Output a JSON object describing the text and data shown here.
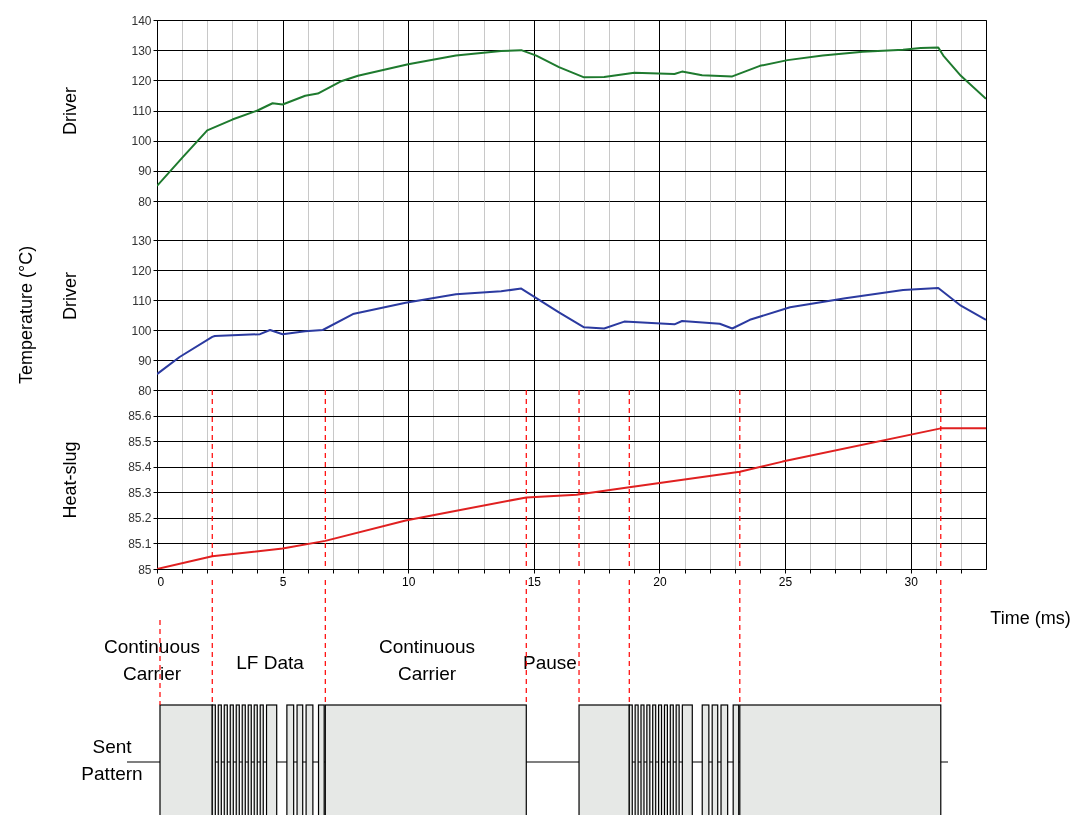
{
  "chart_data": [
    {
      "type": "line",
      "ylabel": "Driver",
      "x": [
        0,
        1,
        2,
        3,
        4,
        4.6,
        5,
        5.9,
        6.4,
        7.3,
        8,
        10,
        11.9,
        13.7,
        14.5,
        15.1,
        16,
        17,
        17.8,
        19,
        20.6,
        20.9,
        21.7,
        22.9,
        24,
        25.1,
        26.5,
        28.1,
        29.7,
        30.4,
        31.1,
        31.3,
        32,
        33
      ],
      "series": [
        {
          "color": "#1e7a2e",
          "values": [
            85,
            94.3,
            103.4,
            107,
            110,
            112.4,
            112,
            114.9,
            115.6,
            119.6,
            121.5,
            125.3,
            128.2,
            129.7,
            130,
            128.2,
            124.4,
            121,
            121.1,
            122.5,
            122.1,
            122.9,
            121.7,
            121.3,
            124.8,
            126.7,
            128.2,
            129.5,
            130.1,
            130.7,
            130.9,
            128.2,
            121.5,
            113.9
          ]
        }
      ],
      "xlim": [
        0,
        33
      ],
      "ylim": [
        80,
        140
      ],
      "yticks": [
        80,
        90,
        100,
        110,
        120,
        130,
        140
      ],
      "xticks": [
        0,
        {
          "value": 1,
          "label": null
        },
        {
          "value": 2,
          "label": null
        },
        {
          "value": 3,
          "label": null
        },
        {
          "value": 4,
          "label": null
        },
        5,
        {
          "value": 6,
          "label": null
        },
        {
          "value": 7,
          "label": null
        },
        {
          "value": 8,
          "label": null
        },
        {
          "value": 9,
          "label": null
        },
        10,
        {
          "value": 11,
          "label": null
        },
        {
          "value": 12,
          "label": null
        },
        {
          "value": 13,
          "label": null
        },
        {
          "value": 14,
          "label": null
        },
        15,
        {
          "value": 16,
          "label": null
        },
        {
          "value": 17,
          "label": null
        },
        {
          "value": 18,
          "label": null
        },
        {
          "value": 19,
          "label": null
        },
        20,
        {
          "value": 21,
          "label": null
        },
        {
          "value": 22,
          "label": null
        },
        {
          "value": 23,
          "label": null
        },
        {
          "value": 24,
          "label": null
        },
        25,
        {
          "value": 26,
          "label": null
        },
        {
          "value": 27,
          "label": null
        },
        {
          "value": 28,
          "label": null
        },
        {
          "value": 29,
          "label": null
        },
        30,
        {
          "value": 31,
          "label": null
        },
        {
          "value": 32,
          "label": null
        }
      ],
      "grid": true,
      "tick_labels": "y"
    },
    {
      "type": "line",
      "ylabel": "Driver",
      "annotations": [
        "Temperature (°C)"
      ],
      "x": [
        0,
        0.9,
        2.2,
        2.3,
        4.1,
        4.5,
        5,
        5.9,
        6.6,
        7.8,
        9.9,
        11.9,
        13.7,
        14.5,
        15.1,
        16,
        17,
        17.8,
        18.6,
        20.6,
        20.9,
        22.4,
        22.9,
        23.6,
        25.2,
        27.4,
        29.7,
        31.1,
        32,
        33
      ],
      "series": [
        {
          "color": "#2b3aa0",
          "values": [
            85.3,
            91,
            97.7,
            98,
            98.6,
            100,
            98.6,
            99.6,
            100,
            105.3,
            109.1,
            111.9,
            112.9,
            113.8,
            110.6,
            105.9,
            100.9,
            100.5,
            102.8,
            101.9,
            103,
            102.1,
            100.5,
            103.4,
            107.6,
            110.6,
            113.3,
            114,
            108.1,
            103.4
          ]
        }
      ],
      "xlim": [
        0,
        33
      ],
      "ylim": [
        80,
        143
      ],
      "yticks": [
        80,
        90,
        100,
        110,
        120,
        130
      ],
      "xticks": [
        0,
        {
          "value": 1,
          "label": null
        },
        {
          "value": 2,
          "label": null
        },
        {
          "value": 3,
          "label": null
        },
        {
          "value": 4,
          "label": null
        },
        5,
        {
          "value": 6,
          "label": null
        },
        {
          "value": 7,
          "label": null
        },
        {
          "value": 8,
          "label": null
        },
        {
          "value": 9,
          "label": null
        },
        10,
        {
          "value": 11,
          "label": null
        },
        {
          "value": 12,
          "label": null
        },
        {
          "value": 13,
          "label": null
        },
        {
          "value": 14,
          "label": null
        },
        15,
        {
          "value": 16,
          "label": null
        },
        {
          "value": 17,
          "label": null
        },
        {
          "value": 18,
          "label": null
        },
        {
          "value": 19,
          "label": null
        },
        20,
        {
          "value": 21,
          "label": null
        },
        {
          "value": 22,
          "label": null
        },
        {
          "value": 23,
          "label": null
        },
        {
          "value": 24,
          "label": null
        },
        25,
        {
          "value": 26,
          "label": null
        },
        {
          "value": 27,
          "label": null
        },
        {
          "value": 28,
          "label": null
        },
        {
          "value": 29,
          "label": null
        },
        30,
        {
          "value": 31,
          "label": null
        },
        {
          "value": 32,
          "label": null
        }
      ],
      "grid": true,
      "tick_labels": "y"
    },
    {
      "type": "line",
      "ylabel": "Heat-slug",
      "xlabel": "Time (ms)",
      "x": [
        0,
        2.2,
        5,
        6.7,
        9.9,
        14.7,
        16.7,
        18.8,
        23.2,
        24.9,
        31.2,
        33
      ],
      "series": [
        {
          "color": "#e02020",
          "values": [
            85,
            85.05,
            85.08,
            85.11,
            85.19,
            85.28,
            85.29,
            85.32,
            85.38,
            85.42,
            85.55,
            85.55
          ]
        }
      ],
      "xlim": [
        0,
        33
      ],
      "ylim": [
        85,
        85.7
      ],
      "yticks": [
        85,
        85.1,
        85.2,
        85.3,
        85.4,
        85.5,
        85.6
      ],
      "xticks": [
        0,
        {
          "value": 1,
          "label": null
        },
        {
          "value": 2,
          "label": null
        },
        {
          "value": 3,
          "label": null
        },
        {
          "value": 4,
          "label": null
        },
        5,
        {
          "value": 6,
          "label": null
        },
        {
          "value": 7,
          "label": null
        },
        {
          "value": 8,
          "label": null
        },
        {
          "value": 9,
          "label": null
        },
        10,
        {
          "value": 11,
          "label": null
        },
        {
          "value": 12,
          "label": null
        },
        {
          "value": 13,
          "label": null
        },
        {
          "value": 14,
          "label": null
        },
        15,
        {
          "value": 16,
          "label": null
        },
        {
          "value": 17,
          "label": null
        },
        {
          "value": 18,
          "label": null
        },
        {
          "value": 19,
          "label": null
        },
        20,
        {
          "value": 21,
          "label": null
        },
        {
          "value": 22,
          "label": null
        },
        {
          "value": 23,
          "label": null
        },
        {
          "value": 24,
          "label": null
        },
        25,
        {
          "value": 26,
          "label": null
        },
        {
          "value": 27,
          "label": null
        },
        {
          "value": 28,
          "label": null
        },
        {
          "value": 29,
          "label": null
        },
        30,
        {
          "value": 31,
          "label": null
        },
        {
          "value": 32,
          "label": null
        }
      ],
      "grid": true,
      "ref_lines": [
        {
          "axis": "x",
          "value": 2.2,
          "color": "#ff0000",
          "line_style": "dashed"
        },
        {
          "axis": "x",
          "value": 6.7,
          "color": "#ff0000",
          "line_style": "dashed"
        },
        {
          "axis": "x",
          "value": 14.7,
          "color": "#ff0000",
          "line_style": "dashed"
        },
        {
          "axis": "x",
          "value": 16.8,
          "color": "#ff0000",
          "line_style": "dashed"
        },
        {
          "axis": "x",
          "value": 18.8,
          "color": "#ff0000",
          "line_style": "dashed"
        },
        {
          "axis": "x",
          "value": 23.2,
          "color": "#ff0000",
          "line_style": "dashed"
        },
        {
          "axis": "x",
          "value": 31.2,
          "color": "#ff0000",
          "line_style": "dashed"
        }
      ]
    },
    {
      "type": "other",
      "annotations": [
        "Continuous Carrier",
        "LF Data",
        "Continuous Carrier",
        "Pause",
        "Sent Pattern"
      ]
    }
  ]
}
